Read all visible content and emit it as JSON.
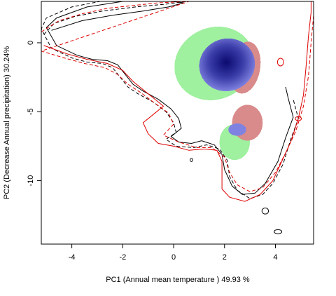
{
  "chart_data": {
    "type": "contour-density",
    "title": "",
    "xlabel": "PC1 (Annual mean temperature ) 49.93 %",
    "ylabel": "PC2 (Decrease Annual precipitation) 30.24%",
    "xlim": [
      -5.2,
      5.5
    ],
    "ylim": [
      -14.6,
      3.0
    ],
    "x_ticks": [
      -4,
      -2,
      0,
      2,
      4
    ],
    "y_ticks": [
      0,
      -5,
      -10
    ],
    "grid": false,
    "legend": "none",
    "colors": {
      "black_contour": "#000000",
      "red_contour": "#dd0000",
      "green_region": "#9ff09f",
      "red_region": "#d98a8a",
      "blue_overlap_edge": "#7f82e0",
      "blue_overlap_core": "#0a0a70"
    },
    "series": [
      {
        "kind": "contour-solid",
        "color": "#000000",
        "points": [
          [
            -4.8,
            0.9
          ],
          [
            -3.6,
            1.6
          ],
          [
            -2.4,
            2.0
          ],
          [
            -1.2,
            2.3
          ],
          [
            -0.2,
            2.6
          ],
          [
            0.4,
            2.9
          ],
          [
            -0.6,
            3.1
          ],
          [
            -2.0,
            3.0
          ],
          [
            -3.4,
            2.6
          ],
          [
            -4.6,
            1.8
          ],
          [
            -5.0,
            1.1
          ],
          [
            -4.6,
            -0.2
          ],
          [
            -3.8,
            -0.9
          ],
          [
            -3.2,
            -1.2
          ],
          [
            -2.6,
            -1.3
          ],
          [
            -2.2,
            -1.6
          ],
          [
            -1.9,
            -2.3
          ],
          [
            -1.6,
            -3.0
          ],
          [
            -1.2,
            -3.5
          ],
          [
            -0.6,
            -4.1
          ],
          [
            -0.1,
            -4.8
          ],
          [
            0.2,
            -5.5
          ],
          [
            0.3,
            -6.2
          ],
          [
            -0.1,
            -6.8
          ],
          [
            0.2,
            -7.2
          ],
          [
            0.7,
            -7.3
          ],
          [
            1.1,
            -7.1
          ],
          [
            1.6,
            -7.4
          ],
          [
            1.9,
            -8.1
          ],
          [
            2.0,
            -9.2
          ],
          [
            2.3,
            -10.4
          ],
          [
            2.7,
            -11.0
          ],
          [
            3.2,
            -10.9
          ],
          [
            3.6,
            -10.2
          ],
          [
            4.1,
            -8.6
          ],
          [
            4.4,
            -6.9
          ],
          [
            4.7,
            -5.4
          ],
          [
            4.5,
            -4.0
          ],
          [
            4.4,
            -3.2
          ]
        ]
      },
      {
        "kind": "contour-dashed",
        "color": "#000000",
        "points": [
          [
            -5.1,
            0.6
          ],
          [
            -4.7,
            1.4
          ],
          [
            -3.9,
            1.9
          ],
          [
            -2.8,
            2.3
          ],
          [
            -1.5,
            2.6
          ],
          [
            -0.3,
            2.8
          ],
          [
            0.5,
            3.0
          ],
          [
            -1.0,
            3.2
          ],
          [
            -2.6,
            3.1
          ],
          [
            -4.0,
            2.6
          ],
          [
            -5.0,
            1.8
          ],
          [
            -5.2,
            1.0
          ],
          [
            -4.8,
            -0.4
          ],
          [
            -4.0,
            -1.1
          ],
          [
            -3.4,
            -1.4
          ],
          [
            -2.8,
            -1.5
          ],
          [
            -2.4,
            -1.8
          ],
          [
            -2.1,
            -2.5
          ],
          [
            -1.8,
            -3.2
          ],
          [
            -1.4,
            -3.7
          ],
          [
            -0.8,
            -4.3
          ],
          [
            -0.3,
            -5.0
          ],
          [
            0.0,
            -5.8
          ],
          [
            0.1,
            -6.5
          ],
          [
            -0.3,
            -7.0
          ],
          [
            0.1,
            -7.5
          ],
          [
            0.8,
            -7.6
          ],
          [
            1.3,
            -7.4
          ],
          [
            1.8,
            -7.7
          ],
          [
            2.1,
            -8.5
          ],
          [
            2.2,
            -9.7
          ],
          [
            2.5,
            -10.7
          ],
          [
            3.0,
            -11.3
          ],
          [
            3.5,
            -11.0
          ],
          [
            3.9,
            -10.2
          ],
          [
            4.3,
            -8.8
          ],
          [
            4.6,
            -7.0
          ],
          [
            4.9,
            -5.5
          ],
          [
            4.7,
            -4.1
          ]
        ]
      },
      {
        "kind": "contour-solid",
        "color": "#dd0000",
        "points": [
          [
            -5.1,
            -0.2
          ],
          [
            -4.2,
            -0.8
          ],
          [
            -3.4,
            -1.2
          ],
          [
            -2.6,
            -1.5
          ],
          [
            -2.0,
            -2.0
          ],
          [
            -1.6,
            -2.8
          ],
          [
            -1.2,
            -3.4
          ],
          [
            -0.8,
            -4.0
          ],
          [
            -0.4,
            -4.6
          ],
          [
            -0.8,
            -5.2
          ],
          [
            -1.2,
            -5.8
          ],
          [
            -1.0,
            -6.6
          ],
          [
            -0.6,
            -7.3
          ],
          [
            0.0,
            -7.5
          ],
          [
            0.6,
            -7.8
          ],
          [
            1.2,
            -7.7
          ],
          [
            1.7,
            -7.8
          ],
          [
            1.9,
            -8.6
          ],
          [
            1.9,
            -9.6
          ],
          [
            1.9,
            -10.6
          ],
          [
            2.2,
            -11.2
          ],
          [
            2.8,
            -11.5
          ],
          [
            3.4,
            -11.0
          ],
          [
            3.9,
            -10.0
          ],
          [
            4.2,
            -8.8
          ],
          [
            4.6,
            -7.2
          ],
          [
            4.9,
            -5.5
          ],
          [
            5.1,
            -3.8
          ],
          [
            5.2,
            -1.8
          ],
          [
            5.3,
            0.5
          ],
          [
            5.4,
            2.2
          ],
          [
            5.4,
            3.0
          ]
        ]
      },
      {
        "kind": "contour-dashed",
        "color": "#dd0000",
        "points": [
          [
            -5.2,
            0.8
          ],
          [
            -4.5,
            1.6
          ],
          [
            -3.6,
            2.1
          ],
          [
            -2.6,
            2.5
          ],
          [
            -1.6,
            2.7
          ],
          [
            -0.6,
            2.9
          ],
          [
            0.6,
            3.0
          ],
          [
            -5.2,
            -0.6
          ],
          [
            -4.3,
            -1.1
          ],
          [
            -3.5,
            -1.5
          ],
          [
            -2.7,
            -1.8
          ],
          [
            -2.2,
            -2.3
          ],
          [
            -1.8,
            -3.0
          ],
          [
            -1.3,
            -3.6
          ],
          [
            -0.8,
            -4.3
          ],
          [
            -0.2,
            -5.1
          ],
          [
            0.0,
            -5.9
          ],
          [
            -0.4,
            -6.7
          ],
          [
            0.2,
            -7.2
          ],
          [
            0.9,
            -7.6
          ],
          [
            1.5,
            -7.6
          ],
          [
            2.0,
            -8.3
          ],
          [
            2.2,
            -9.4
          ],
          [
            2.5,
            -10.3
          ],
          [
            3.0,
            -10.8
          ],
          [
            3.5,
            -10.5
          ],
          [
            4.0,
            -9.4
          ],
          [
            4.4,
            -8.0
          ],
          [
            4.8,
            -6.4
          ],
          [
            5.1,
            -4.6
          ],
          [
            5.3,
            -2.4
          ],
          [
            5.4,
            0.0
          ],
          [
            5.5,
            2.0
          ]
        ]
      }
    ],
    "regions": [
      {
        "name": "",
        "kind": "niche-green-upper",
        "color": "#9ff09f",
        "center": [
          1.6,
          -1.5
        ],
        "radii": [
          1.6,
          2.6
        ]
      },
      {
        "name": "",
        "kind": "niche-green-lower",
        "color": "#9ff09f",
        "center": [
          2.4,
          -7.2
        ],
        "radii": [
          0.6,
          1.3
        ]
      },
      {
        "name": "",
        "kind": "niche-red-upper",
        "color": "#d98a8a",
        "center": [
          2.8,
          -1.8
        ],
        "radii": [
          0.6,
          1.9
        ]
      },
      {
        "name": "",
        "kind": "niche-red-lower",
        "color": "#d98a8a",
        "center": [
          2.9,
          -5.8
        ],
        "radii": [
          0.6,
          1.3
        ]
      },
      {
        "name": "",
        "kind": "overlap-blue-main",
        "color": "#0a0a70",
        "center": [
          2.1,
          -1.6
        ],
        "radii": [
          1.1,
          1.9
        ]
      },
      {
        "name": "",
        "kind": "overlap-blue-small",
        "color": "#7f82e0",
        "center": [
          2.5,
          -6.3
        ],
        "radii": [
          0.35,
          0.45
        ]
      }
    ]
  }
}
